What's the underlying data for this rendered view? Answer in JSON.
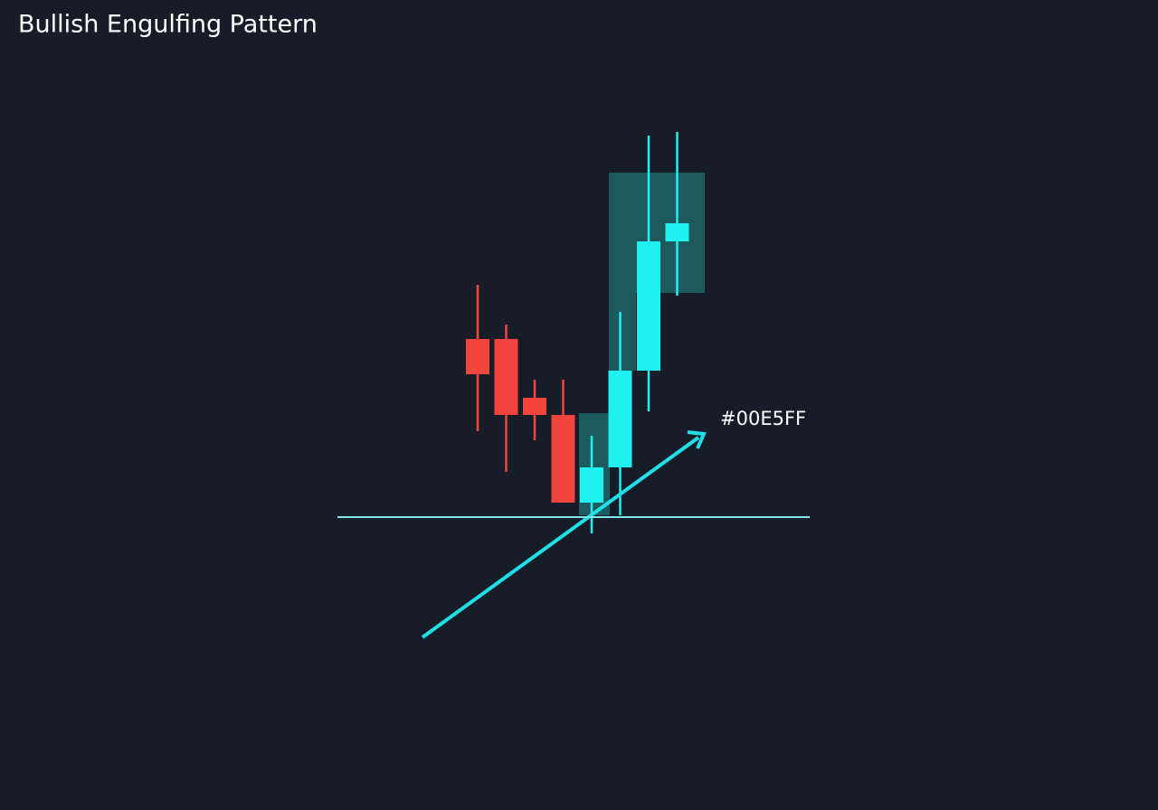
{
  "chart_data": {
    "type": "candlestick",
    "title": "Bullish Engulfing Pattern",
    "annotation": "#00E5FF",
    "ylim": [
      0,
      100
    ],
    "up_color": "#1ff0f0",
    "down_color": "#f2453d",
    "highlight_color": "#1f6f70",
    "open": [
      45,
      45,
      32,
      28.2,
      8.8,
      16.6,
      38,
      66.6
    ],
    "high": [
      57,
      48.2,
      36,
      36,
      23.6,
      51,
      90,
      90.8
    ],
    "low": [
      24.6,
      15.6,
      22.6,
      8.8,
      2,
      6,
      29,
      54.6
    ],
    "close": [
      37.2,
      28.2,
      28.2,
      8.8,
      16.6,
      38,
      66.6,
      70.6
    ],
    "support": 5.6
  }
}
